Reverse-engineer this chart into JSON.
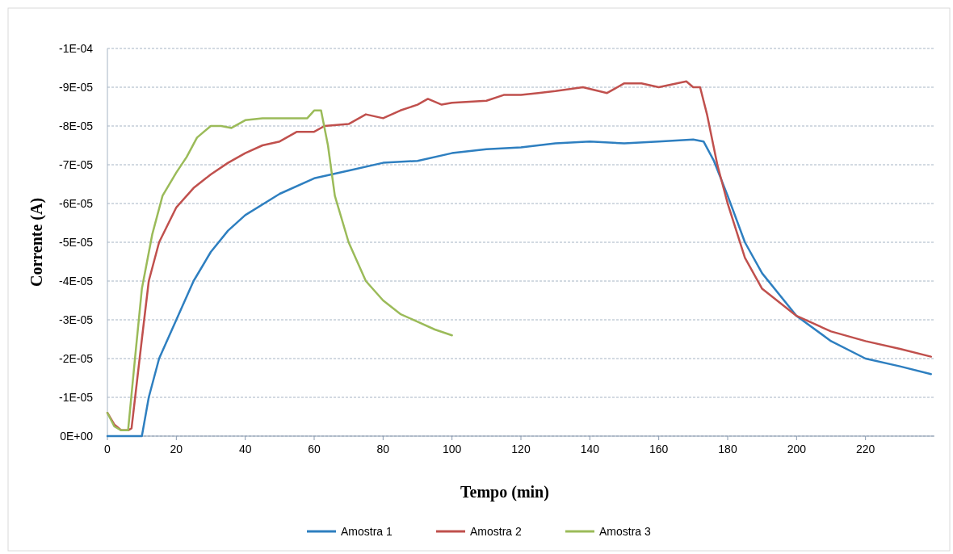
{
  "chart_data": {
    "type": "line",
    "xlabel": "Tempo (min)",
    "ylabel": "Corrente (A)",
    "xlim": [
      0,
      240
    ],
    "xticks": [
      0,
      20,
      40,
      60,
      80,
      100,
      120,
      140,
      160,
      180,
      200,
      220
    ],
    "ylim": [
      0,
      -0.0001
    ],
    "yticks": [
      {
        "value": -0.0001,
        "label": "-1E-04"
      },
      {
        "value": -9e-05,
        "label": "-9E-05"
      },
      {
        "value": -8e-05,
        "label": "-8E-05"
      },
      {
        "value": -7e-05,
        "label": "-7E-05"
      },
      {
        "value": -6e-05,
        "label": "-6E-05"
      },
      {
        "value": -5e-05,
        "label": "-5E-05"
      },
      {
        "value": -4e-05,
        "label": "-4E-05"
      },
      {
        "value": -3e-05,
        "label": "-3E-05"
      },
      {
        "value": -2e-05,
        "label": "-2E-05"
      },
      {
        "value": -1e-05,
        "label": "-1E-05"
      },
      {
        "value": 0,
        "label": "0E+00"
      }
    ],
    "grid": "y",
    "legend": "bottom",
    "marker": "none",
    "line_style": "solid",
    "series": [
      {
        "name": "Amostra 1",
        "color": "#2e7fc0",
        "x": [
          0,
          10,
          12,
          15,
          20,
          25,
          30,
          35,
          40,
          50,
          60,
          70,
          80,
          90,
          100,
          110,
          120,
          130,
          140,
          150,
          160,
          170,
          173,
          176,
          180,
          185,
          190,
          200,
          210,
          220,
          230,
          239
        ],
        "values": [
          0,
          0,
          -1e-05,
          -2e-05,
          -3e-05,
          -4e-05,
          -4.75e-05,
          -5.3e-05,
          -5.7e-05,
          -6.25e-05,
          -6.65e-05,
          -6.85e-05,
          -7.05e-05,
          -7.1e-05,
          -7.3e-05,
          -7.4e-05,
          -7.45e-05,
          -7.55e-05,
          -7.6e-05,
          -7.55e-05,
          -7.6e-05,
          -7.65e-05,
          -7.6e-05,
          -7.1e-05,
          -6.2e-05,
          -5e-05,
          -4.2e-05,
          -3.1e-05,
          -2.45e-05,
          -2e-05,
          -1.8e-05,
          -1.6e-05
        ]
      },
      {
        "name": "Amostra 2",
        "color": "#c0504d",
        "x": [
          0,
          2,
          4,
          6,
          7,
          10,
          12,
          15,
          20,
          25,
          30,
          35,
          40,
          45,
          50,
          55,
          60,
          63,
          70,
          75,
          80,
          85,
          90,
          93,
          97,
          100,
          110,
          115,
          120,
          125,
          130,
          138,
          145,
          150,
          155,
          160,
          168,
          170,
          172,
          174,
          177,
          180,
          185,
          190,
          200,
          210,
          220,
          230,
          239
        ],
        "values": [
          -6e-06,
          -3e-06,
          -1.5e-06,
          -1.5e-06,
          -2e-06,
          -2.5e-05,
          -4e-05,
          -5e-05,
          -5.9e-05,
          -6.4e-05,
          -6.75e-05,
          -7.05e-05,
          -7.3e-05,
          -7.5e-05,
          -7.6e-05,
          -7.85e-05,
          -7.85e-05,
          -8e-05,
          -8.05e-05,
          -8.3e-05,
          -8.2e-05,
          -8.4e-05,
          -8.55e-05,
          -8.7e-05,
          -8.55e-05,
          -8.6e-05,
          -8.65e-05,
          -8.8e-05,
          -8.8e-05,
          -8.85e-05,
          -8.9e-05,
          -9e-05,
          -8.85e-05,
          -9.1e-05,
          -9.1e-05,
          -9e-05,
          -9.15e-05,
          -9e-05,
          -9e-05,
          -8.3e-05,
          -7e-05,
          -6e-05,
          -4.6e-05,
          -3.8e-05,
          -3.1e-05,
          -2.7e-05,
          -2.45e-05,
          -2.25e-05,
          -2.05e-05
        ]
      },
      {
        "name": "Amostra 3",
        "color": "#9bbb59",
        "x": [
          0,
          2,
          4,
          6,
          8,
          10,
          13,
          16,
          20,
          23,
          26,
          30,
          33,
          36,
          40,
          45,
          50,
          55,
          58,
          60,
          62,
          64,
          66,
          70,
          75,
          80,
          85,
          90,
          95,
          100
        ],
        "values": [
          -6e-06,
          -2.5e-06,
          -1.5e-06,
          -1.5e-06,
          -2e-05,
          -3.8e-05,
          -5.2e-05,
          -6.2e-05,
          -6.8e-05,
          -7.2e-05,
          -7.7e-05,
          -8e-05,
          -8e-05,
          -7.95e-05,
          -8.15e-05,
          -8.2e-05,
          -8.2e-05,
          -8.2e-05,
          -8.2e-05,
          -8.4e-05,
          -8.4e-05,
          -7.5e-05,
          -6.2e-05,
          -5e-05,
          -4e-05,
          -3.5e-05,
          -3.15e-05,
          -2.95e-05,
          -2.75e-05,
          -2.6e-05
        ]
      }
    ]
  }
}
